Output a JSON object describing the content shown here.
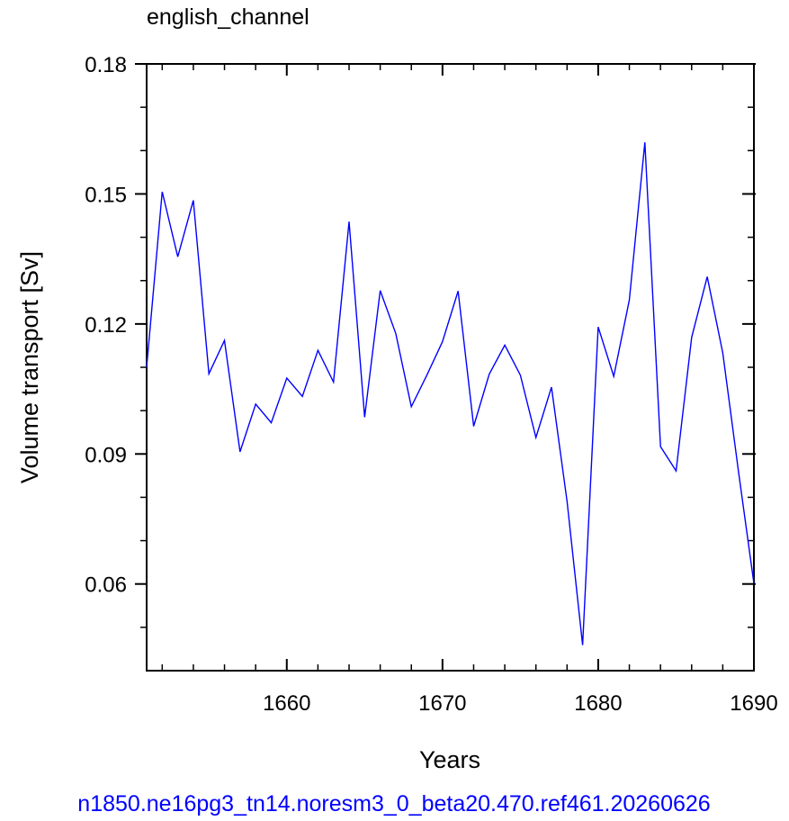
{
  "chart_data": {
    "type": "line",
    "title": "english_channel",
    "xlabel": "Years",
    "ylabel": "Volume transport [Sv]",
    "xlim": [
      1651,
      1690
    ],
    "ylim": [
      0.04,
      0.18
    ],
    "x_major_ticks": [
      1660,
      1670,
      1680,
      1690
    ],
    "x_minor_ticks": [
      1652,
      1654,
      1656,
      1658,
      1662,
      1664,
      1666,
      1668,
      1672,
      1674,
      1676,
      1678,
      1682,
      1684,
      1686,
      1688
    ],
    "y_major_ticks": [
      0.06,
      0.09,
      0.12,
      0.15,
      0.18
    ],
    "y_minor_ticks": [
      0.05,
      0.07,
      0.08,
      0.1,
      0.11,
      0.13,
      0.14,
      0.16,
      0.17
    ],
    "x_tick_labels": [
      "1660",
      "1670",
      "1680",
      "1690"
    ],
    "y_tick_labels": [
      "0.06",
      "0.09",
      "0.12",
      "0.15",
      "0.18"
    ],
    "grid": false,
    "line_color": "#0000ff",
    "footer_color": "#0000ff",
    "series": [
      {
        "x": [
          1651,
          1652,
          1653,
          1654,
          1655,
          1656,
          1657,
          1658,
          1659,
          1660,
          1661,
          1662,
          1663,
          1664,
          1665,
          1666,
          1667,
          1668,
          1669,
          1670,
          1671,
          1672,
          1673,
          1674,
          1675,
          1676,
          1677,
          1678,
          1679,
          1680,
          1681,
          1682,
          1683,
          1684,
          1685,
          1686,
          1687,
          1688,
          1689,
          1690
        ],
        "values": [
          0.11,
          0.1505,
          0.1355,
          0.1485,
          0.1085,
          0.1162,
          0.0905,
          0.1015,
          0.0972,
          0.1075,
          0.1033,
          0.1139,
          0.1066,
          0.1436,
          0.0985,
          0.1277,
          0.1178,
          0.1009,
          0.1082,
          0.1159,
          0.1276,
          0.0964,
          0.1084,
          0.1151,
          0.1082,
          0.0938,
          0.1054,
          0.0791,
          0.0459,
          0.1193,
          0.1079,
          0.1255,
          0.1619,
          0.0917,
          0.0861,
          0.1169,
          0.1309,
          0.1133,
          0.0862,
          0.0601
        ]
      }
    ]
  },
  "footer": "n1850.ne16pg3_tn14.noresm3_0_beta20.470.ref461.20260626"
}
